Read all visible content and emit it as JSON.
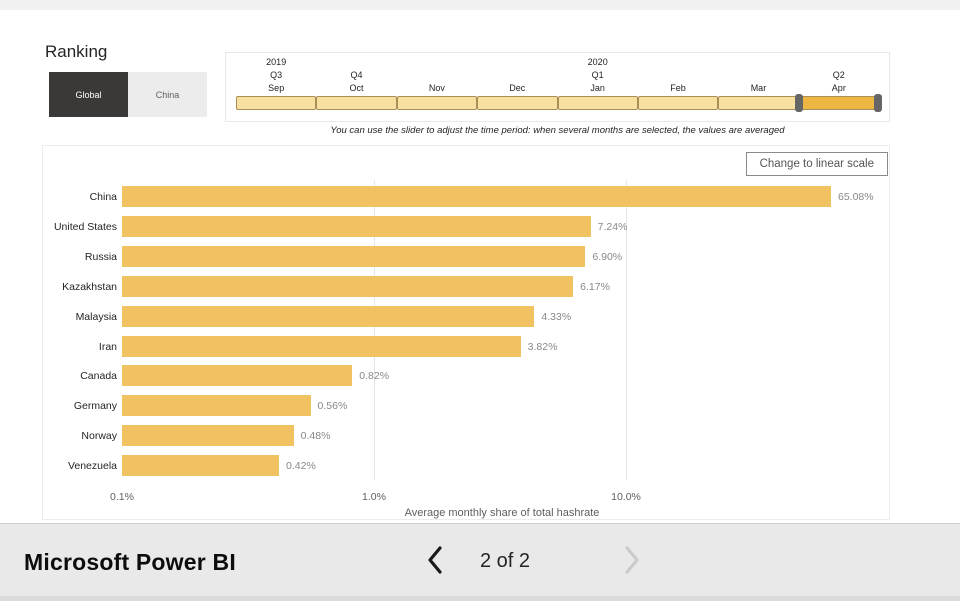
{
  "colors": {
    "bar": "#F1C262",
    "slider_selected": "#EDB542",
    "slider_segment": "#F8E0A0",
    "slider_border": "#A88F55",
    "tab_active_bg": "#3A3938",
    "handle": "#666666"
  },
  "header": {
    "title": "Ranking",
    "tabs": [
      {
        "label": "Global",
        "active": true
      },
      {
        "label": "China",
        "active": false
      }
    ]
  },
  "time_slider": {
    "segments": [
      {
        "month": "Sep",
        "quarter": "Q3",
        "year": "2019",
        "selected": false
      },
      {
        "month": "Oct",
        "quarter": "Q4",
        "selected": false
      },
      {
        "month": "Nov",
        "selected": false
      },
      {
        "month": "Dec",
        "selected": false
      },
      {
        "month": "Jan",
        "quarter": "Q1",
        "year": "2020",
        "selected": false
      },
      {
        "month": "Feb",
        "selected": false
      },
      {
        "month": "Mar",
        "selected": false
      },
      {
        "month": "Apr",
        "quarter": "Q2",
        "selected": true
      }
    ],
    "caption": "You can use the slider to adjust the time period: when several months are selected, the values are averaged"
  },
  "chart_panel": {
    "scale_toggle_label": "Change to linear scale"
  },
  "chart_data": {
    "type": "bar",
    "orientation": "horizontal",
    "x_scale": "log",
    "categories": [
      "China",
      "United States",
      "Russia",
      "Kazakhstan",
      "Malaysia",
      "Iran",
      "Canada",
      "Germany",
      "Norway",
      "Venezuela"
    ],
    "values": [
      65.08,
      7.24,
      6.9,
      6.17,
      4.33,
      3.82,
      0.82,
      0.56,
      0.48,
      0.42
    ],
    "value_labels": [
      "65.08%",
      "7.24%",
      "6.90%",
      "6.17%",
      "4.33%",
      "3.82%",
      "0.82%",
      "0.56%",
      "0.48%",
      "0.42%"
    ],
    "xlabel": "Average monthly share of total hashrate",
    "x_ticks": [
      "0.1%",
      "1.0%",
      "10.0%"
    ],
    "x_tick_values": [
      0.1,
      1,
      10
    ],
    "xlim": [
      0.1,
      100
    ],
    "grid": true,
    "legend": false
  },
  "footer": {
    "brand": "Microsoft Power BI",
    "page_indicator": "2 of 2"
  }
}
